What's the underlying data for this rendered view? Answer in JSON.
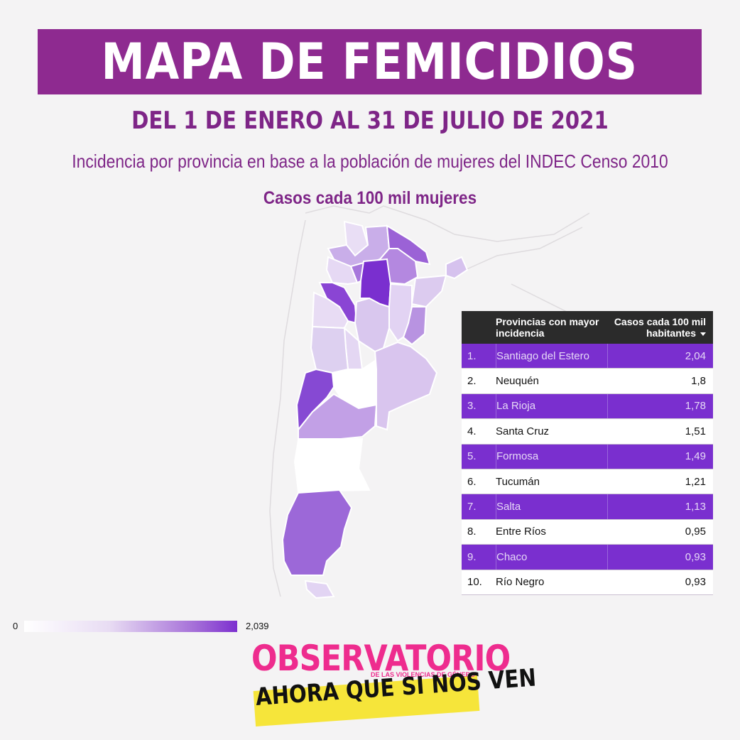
{
  "header": {
    "title": "MAPA DE FEMICIDIOS",
    "date_range": "DEL 1 DE ENERO AL 31 DE JULIO DE 2021",
    "subtitle": "Incidencia por provincia en base a la población de mujeres del INDEC Censo 2010",
    "unit": "Casos cada 100 mil mujeres"
  },
  "colors": {
    "accent": "#8e2a90",
    "highlight_row": "#7a2fcf",
    "scale_low": "#ffffff",
    "scale_high": "#7c2fcf",
    "logo_pink": "#ee2c8e",
    "logo_yellow": "#f6e53a"
  },
  "table": {
    "header_name": "Provincias con mayor incidencia",
    "header_value": "Casos cada 100 mil habitantes",
    "rows": [
      {
        "rank": "1.",
        "province": "Santiago del Estero",
        "value": "2,04"
      },
      {
        "rank": "2.",
        "province": "Neuquén",
        "value": "1,8"
      },
      {
        "rank": "3.",
        "province": "La Rioja",
        "value": "1,78"
      },
      {
        "rank": "4.",
        "province": "Santa Cruz",
        "value": "1,51"
      },
      {
        "rank": "5.",
        "province": "Formosa",
        "value": "1,49"
      },
      {
        "rank": "6.",
        "province": "Tucumán",
        "value": "1,21"
      },
      {
        "rank": "7.",
        "province": "Salta",
        "value": "1,13"
      },
      {
        "rank": "8.",
        "province": "Entre Ríos",
        "value": "0,95"
      },
      {
        "rank": "9.",
        "province": "Chaco",
        "value": "0,93"
      },
      {
        "rank": "10.",
        "province": "Río Negro",
        "value": "0,93"
      }
    ]
  },
  "legend": {
    "min": "0",
    "max": "2,039"
  },
  "logo": {
    "line1": "OBSERVATORIO",
    "line2": "DE LAS VIOLENCIAS DE GÉNERO",
    "line3": "AHORA QUE SI NOS VEN"
  }
}
